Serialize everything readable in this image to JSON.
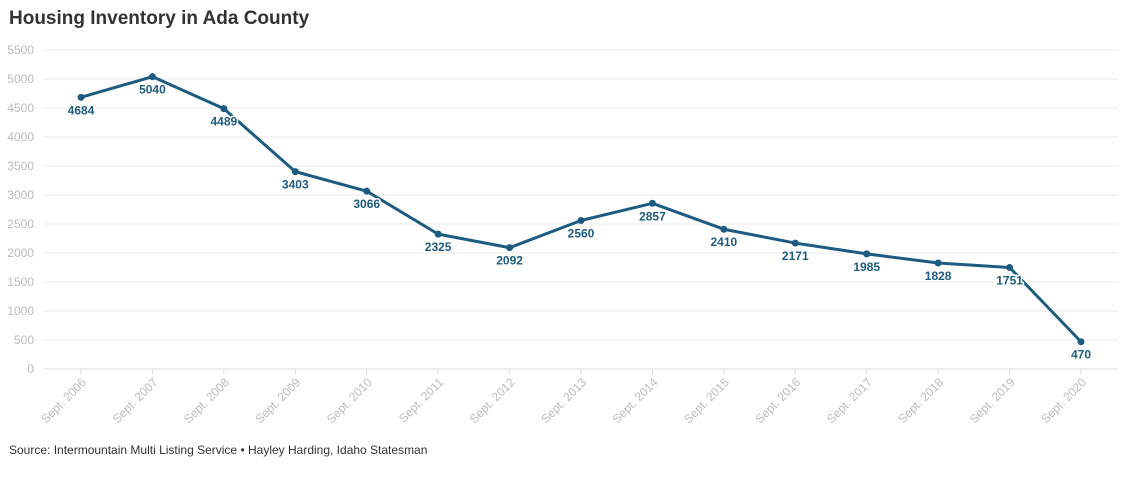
{
  "chart_data": {
    "type": "line",
    "title": "Housing Inventory in Ada County",
    "source": "Source: Intermountain Multi Listing Service • Hayley Harding, Idaho Statesman",
    "categories": [
      "Sept. 2006",
      "Sept. 2007",
      "Sept. 2008",
      "Sept. 2009",
      "Sept. 2010",
      "Sept. 2011",
      "Sept. 2012",
      "Sept. 2013",
      "Sept. 2014",
      "Sept. 2015",
      "Sept. 2016",
      "Sept. 2017",
      "Sept. 2018",
      "Sept. 2019",
      "Sept. 2020"
    ],
    "values": [
      4684,
      5040,
      4489,
      3403,
      3066,
      2325,
      2092,
      2560,
      2857,
      2410,
      2171,
      1985,
      1828,
      1751,
      470
    ],
    "ylim": [
      0,
      5500
    ],
    "yticks": [
      0,
      500,
      1000,
      1500,
      2000,
      2500,
      3000,
      3500,
      4000,
      4500,
      5000,
      5500
    ],
    "grid": true,
    "line_color": "#1d5c80",
    "data_labels": true
  }
}
